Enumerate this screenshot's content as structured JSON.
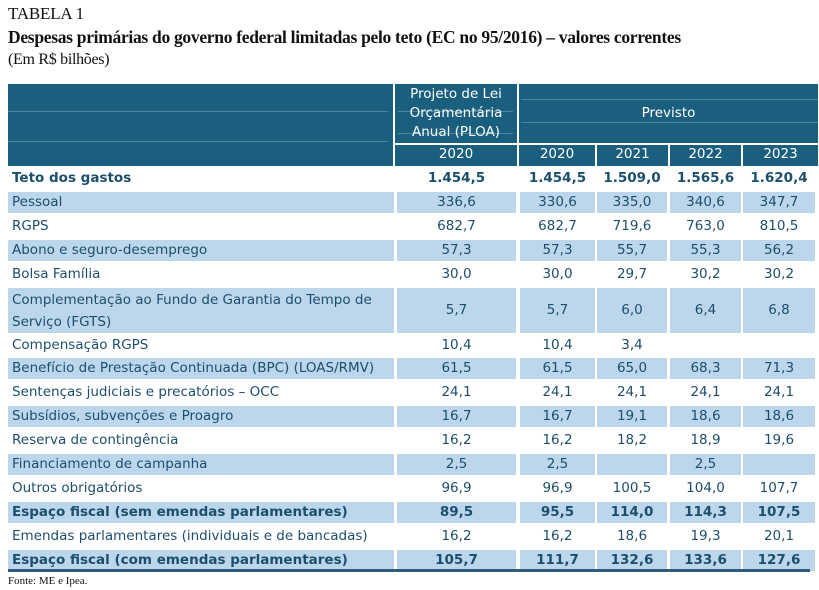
{
  "caption": {
    "table_number": "TABELA 1",
    "title": "Despesas primárias do governo federal limitadas pelo teto (EC no 95/2016) – valores correntes",
    "unit": "(Em R$ bilhões)"
  },
  "header": {
    "ploa_lines": [
      "Projeto de Lei",
      "Orçamentária",
      "Anual (PLOA)"
    ],
    "previsto": "Previsto",
    "years": [
      "2020",
      "2020",
      "2021",
      "2022",
      "2023"
    ]
  },
  "rows": [
    {
      "label": "Teto dos gastos",
      "values": [
        "1.454,5",
        "1.454,5",
        "1.509,0",
        "1.565,6",
        "1.620,4"
      ]
    },
    {
      "label": "Pessoal",
      "values": [
        "336,6",
        "330,6",
        "335,0",
        "340,6",
        "347,7"
      ]
    },
    {
      "label": "RGPS",
      "values": [
        "682,7",
        "682,7",
        "719,6",
        "763,0",
        "810,5"
      ]
    },
    {
      "label": "Abono e seguro-desemprego",
      "values": [
        "57,3",
        "57,3",
        "55,7",
        "55,3",
        "56,2"
      ]
    },
    {
      "label": "Bolsa Família",
      "values": [
        "30,0",
        "30,0",
        "29,7",
        "30,2",
        "30,2"
      ]
    },
    {
      "label": "Complementação ao Fundo de Garantia do Tempo de Serviço (FGTS)",
      "values": [
        "5,7",
        "5,7",
        "6,0",
        "6,4",
        "6,8"
      ]
    },
    {
      "label": "Compensação RGPS",
      "values": [
        "10,4",
        "10,4",
        "3,4",
        "",
        ""
      ]
    },
    {
      "label": "Benefício de Prestação Continuada (BPC) (LOAS/RMV)",
      "values": [
        "61,5",
        "61,5",
        "65,0",
        "68,3",
        "71,3"
      ]
    },
    {
      "label": "Sentenças judiciais e precatórios – OCC",
      "values": [
        "24,1",
        "24,1",
        "24,1",
        "24,1",
        "24,1"
      ]
    },
    {
      "label": "Subsídios, subvenções e Proagro",
      "values": [
        "16,7",
        "16,7",
        "19,1",
        "18,6",
        "18,6"
      ]
    },
    {
      "label": "Reserva de contingência",
      "values": [
        "16,2",
        "16,2",
        "18,2",
        "18,9",
        "19,6"
      ]
    },
    {
      "label": "Financiamento de campanha",
      "values": [
        "2,5",
        "2,5",
        "",
        "2,5",
        ""
      ]
    },
    {
      "label": "Outros obrigatórios",
      "values": [
        "96,9",
        "96,9",
        "100,5",
        "104,0",
        "107,7"
      ]
    },
    {
      "label": "Espaço fiscal (sem emendas parlamentares)",
      "values": [
        "89,5",
        "95,5",
        "114,0",
        "114,3",
        "107,5"
      ]
    },
    {
      "label": "Emendas parlamentares (individuais e de bancadas)",
      "values": [
        "16,2",
        "16,2",
        "18,6",
        "19,3",
        "20,1"
      ]
    },
    {
      "label": "Espaço fiscal (com emendas parlamentares)",
      "values": [
        "105,7",
        "111,7",
        "132,6",
        "133,6",
        "127,6"
      ]
    }
  ],
  "source": "Fonte: ME e Ipea.",
  "colors": {
    "header_bg": "#1b5f7f",
    "shade": "#bcd6ec",
    "text": "#1c4f6c"
  }
}
